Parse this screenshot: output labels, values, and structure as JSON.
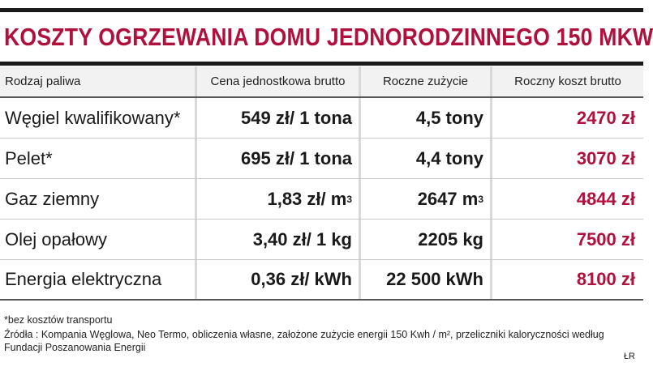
{
  "title": "KOSZTY OGRZEWANIA DOMU JEDNORODZINNEGO 150 MKW.",
  "chart_data": {
    "type": "table",
    "columns": [
      "Rodzaj paliwa",
      "Cena jednostkowa brutto",
      "Roczne zużycie",
      "Roczny koszt brutto"
    ],
    "rows": [
      {
        "fuel": "Węgiel kwalifikowany*",
        "price": "549 zł/ 1 tona",
        "price_sup": "",
        "usage": "4,5 tony",
        "usage_sup": "",
        "cost": "2470 zł"
      },
      {
        "fuel": "Pelet*",
        "price": "695 zł/ 1 tona",
        "price_sup": "",
        "usage": "4,4 tony",
        "usage_sup": "",
        "cost": "3070 zł"
      },
      {
        "fuel": "Gaz ziemny",
        "price": "1,83 zł/ m",
        "price_sup": "3",
        "usage": "2647 m",
        "usage_sup": "3",
        "cost": "4844 zł"
      },
      {
        "fuel": "Olej opałowy",
        "price": "3,40 zł/ 1 kg",
        "price_sup": "",
        "usage": "2205 kg",
        "usage_sup": "",
        "cost": "7500 zł"
      },
      {
        "fuel": "Energia elektryczna",
        "price": "0,36 zł/ kWh",
        "price_sup": "",
        "usage": "22 500 kWh",
        "usage_sup": "",
        "cost": "8100 zł"
      }
    ]
  },
  "footnote": "*bez kosztów transportu",
  "sources": "Źródła : Kompania Węglowa, Neo Termo, obliczenia własne, założone zużycie energii 150 Kwh / m², przeliczniki kaloryczności według Fundacji Poszanowania Energii",
  "credit": "ŁR",
  "colors": {
    "accent": "#b0103c",
    "rule": "#1a1a1a",
    "header_bg": "#f2f2f2"
  }
}
